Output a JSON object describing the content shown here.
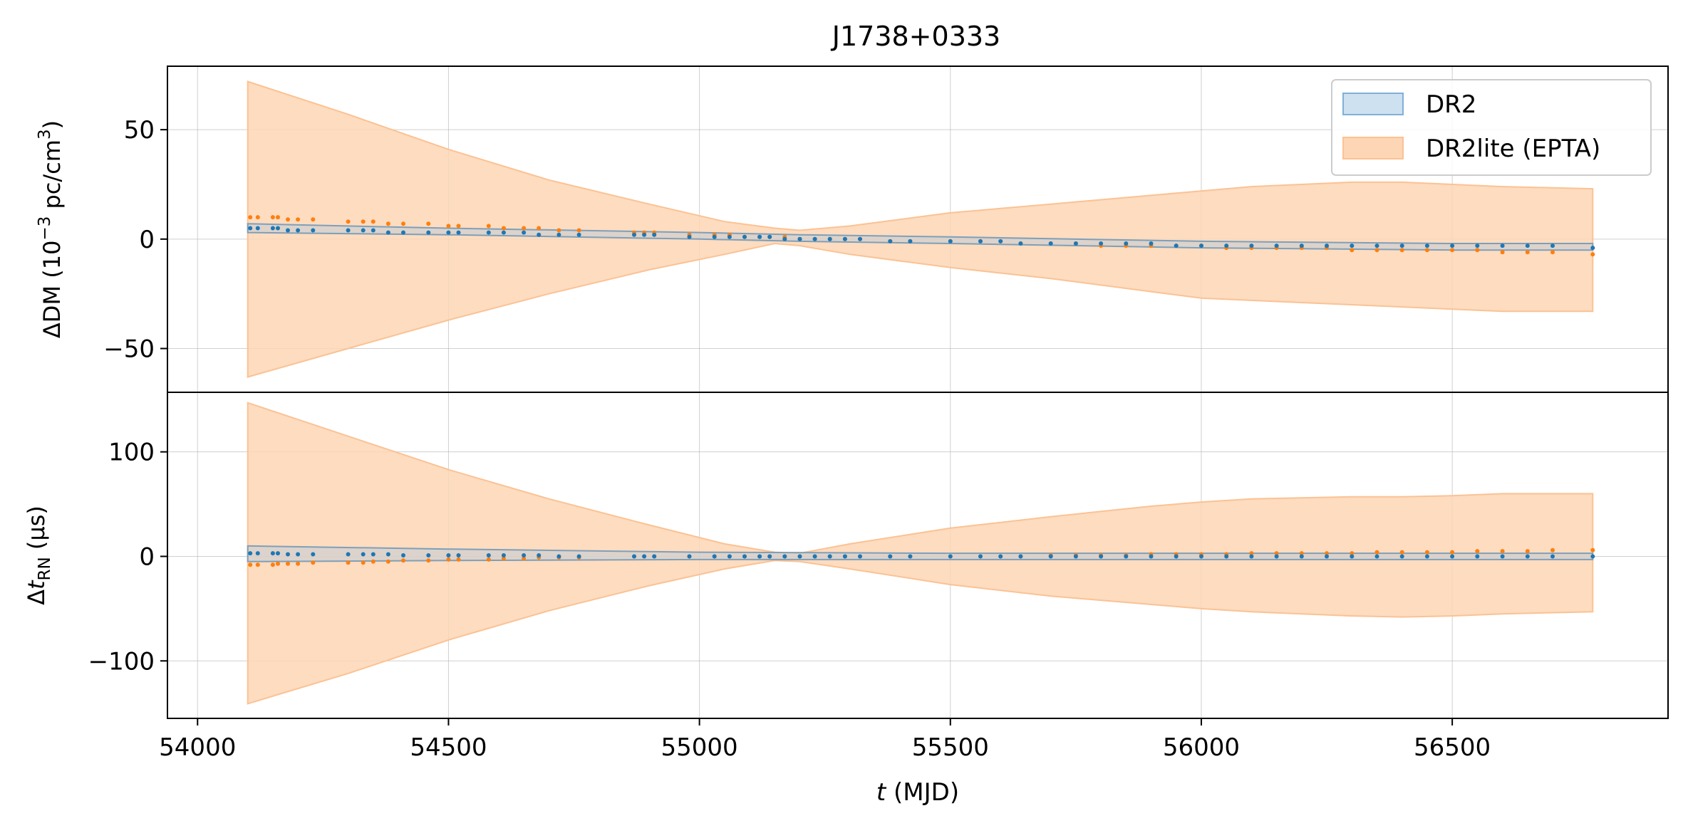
{
  "chart_data": {
    "type": "area",
    "title": "J1738+0333",
    "xlabel": "t (MJD)",
    "xlim": [
      53940,
      56930
    ],
    "xticks": [
      54000,
      54500,
      55000,
      55500,
      56000,
      56500
    ],
    "grid": true,
    "legend": {
      "placement": "top-right",
      "entries": [
        {
          "name": "DR2",
          "color": "#1f77b4"
        },
        {
          "name": "DR2lite (EPTA)",
          "color": "#ff7f0e"
        }
      ]
    },
    "colors": {
      "dr2": "#1f77b4",
      "dr2lite": "#ff7f0e",
      "band_dr2": "#9ec4e3",
      "band_dr2lite": "#fdd6b5"
    },
    "panels": [
      {
        "id": "dm",
        "ylabel": "ΔDM (10⁻³ pc/cm³)",
        "ylim": [
          -70,
          79
        ],
        "yticks": [
          -50,
          0,
          50
        ],
        "ytick_labels": [
          "−50",
          "0",
          "50"
        ],
        "bands": [
          {
            "series": "DR2lite (EPTA)",
            "x": [
              54100,
              54300,
              54500,
              54700,
              54900,
              55050,
              55150,
              55200,
              55300,
              55500,
              55700,
              55900,
              56000,
              56100,
              56200,
              56300,
              56400,
              56500,
              56600,
              56780
            ],
            "upper": [
              72,
              57,
              41,
              27,
              16,
              8,
              5,
              4,
              6,
              12,
              16,
              20,
              22,
              24,
              25,
              26,
              26,
              25,
              24,
              23
            ],
            "lower": [
              -63,
              -50,
              -37,
              -25,
              -14,
              -7,
              -2,
              -3,
              -7,
              -13,
              -18,
              -24,
              -27,
              -28,
              -29,
              -30,
              -31,
              -32,
              -33,
              -33
            ]
          },
          {
            "series": "DR2",
            "x": [
              54100,
              54500,
              55000,
              55200,
              55500,
              56000,
              56500,
              56780
            ],
            "upper": [
              7,
              5,
              3,
              2,
              1,
              -1,
              -2,
              -2
            ],
            "lower": [
              3,
              2,
              0,
              -1,
              -2,
              -4,
              -5,
              -5
            ]
          }
        ],
        "series": [
          {
            "name": "DR2lite (EPTA)",
            "x": [
              54105,
              54120,
              54150,
              54160,
              54180,
              54200,
              54230,
              54300,
              54330,
              54350,
              54380,
              54410,
              54460,
              54500,
              54520,
              54580,
              54610,
              54650,
              54680,
              54720,
              54760,
              54870,
              54890,
              54910,
              54980,
              55030,
              55060,
              55090,
              55120,
              55140,
              55170,
              55200,
              55230,
              55260,
              55290,
              55320,
              55380,
              55420,
              55500,
              55560,
              55600,
              55640,
              55700,
              55750,
              55800,
              55850,
              55900,
              55950,
              56000,
              56050,
              56100,
              56150,
              56200,
              56250,
              56300,
              56350,
              56400,
              56450,
              56500,
              56550,
              56600,
              56650,
              56700,
              56780
            ],
            "y": [
              10,
              10,
              10,
              10,
              9,
              9,
              9,
              8,
              8,
              8,
              7,
              7,
              7,
              6,
              6,
              6,
              5,
              5,
              5,
              4,
              4,
              3,
              3,
              3,
              2,
              2,
              2,
              1,
              1,
              1,
              1,
              0,
              0,
              0,
              0,
              0,
              -1,
              -1,
              -1,
              -1,
              -1,
              -2,
              -2,
              -2,
              -3,
              -3,
              -3,
              -3,
              -3,
              -4,
              -4,
              -4,
              -4,
              -4,
              -5,
              -5,
              -5,
              -5,
              -5,
              -5,
              -6,
              -6,
              -6,
              -7
            ]
          },
          {
            "name": "DR2",
            "x": [
              54105,
              54120,
              54150,
              54160,
              54180,
              54200,
              54230,
              54300,
              54330,
              54350,
              54380,
              54410,
              54460,
              54500,
              54520,
              54580,
              54610,
              54650,
              54680,
              54720,
              54760,
              54870,
              54890,
              54910,
              54980,
              55030,
              55060,
              55090,
              55120,
              55140,
              55170,
              55200,
              55230,
              55260,
              55290,
              55320,
              55380,
              55420,
              55500,
              55560,
              55600,
              55640,
              55700,
              55750,
              55800,
              55850,
              55900,
              55950,
              56000,
              56050,
              56100,
              56150,
              56200,
              56250,
              56300,
              56350,
              56400,
              56450,
              56500,
              56550,
              56600,
              56650,
              56700,
              56780
            ],
            "y": [
              5,
              5,
              5,
              5,
              4,
              4,
              4,
              4,
              4,
              4,
              3,
              3,
              3,
              3,
              3,
              3,
              3,
              3,
              2,
              2,
              2,
              2,
              2,
              2,
              1,
              1,
              1,
              1,
              1,
              1,
              0,
              0,
              0,
              0,
              0,
              0,
              -1,
              -1,
              -1,
              -1,
              -1,
              -2,
              -2,
              -2,
              -2,
              -2,
              -2,
              -3,
              -3,
              -3,
              -3,
              -3,
              -3,
              -3,
              -3,
              -3,
              -3,
              -3,
              -3,
              -3,
              -3,
              -3,
              -3,
              -4
            ]
          }
        ]
      },
      {
        "id": "rn",
        "ylabel": "Δt_RN (μs)",
        "ylabel_main": "Δ",
        "ylabel_italic": "t",
        "ylabel_sub": "RN",
        "ylabel_rest": " (μs)",
        "ylim": [
          -155,
          157
        ],
        "yticks": [
          -100,
          0,
          100
        ],
        "ytick_labels": [
          "−100",
          "0",
          "100"
        ],
        "bands": [
          {
            "series": "DR2lite (EPTA)",
            "x": [
              54100,
              54300,
              54500,
              54700,
              54900,
              55050,
              55150,
              55200,
              55300,
              55500,
              55700,
              55900,
              56000,
              56100,
              56200,
              56300,
              56400,
              56500,
              56600,
              56780
            ],
            "upper": [
              147,
              115,
              83,
              55,
              30,
              12,
              4,
              3,
              12,
              27,
              38,
              48,
              52,
              55,
              56,
              57,
              57,
              58,
              60,
              60
            ],
            "lower": [
              -141,
              -112,
              -80,
              -52,
              -28,
              -12,
              -4,
              -5,
              -12,
              -27,
              -38,
              -46,
              -50,
              -53,
              -55,
              -57,
              -58,
              -57,
              -55,
              -53
            ]
          },
          {
            "series": "DR2",
            "x": [
              54100,
              54500,
              55000,
              55500,
              56000,
              56500,
              56780
            ],
            "upper": [
              10,
              7,
              4,
              3,
              3,
              3,
              3
            ],
            "lower": [
              -5,
              -4,
              -3,
              -3,
              -3,
              -3,
              -3
            ]
          }
        ],
        "series": [
          {
            "name": "DR2lite (EPTA)",
            "x": [
              54105,
              54120,
              54150,
              54160,
              54180,
              54200,
              54230,
              54300,
              54330,
              54350,
              54380,
              54410,
              54460,
              54500,
              54520,
              54580,
              54610,
              54650,
              54680,
              54720,
              54760,
              54870,
              54890,
              54910,
              54980,
              55030,
              55060,
              55090,
              55120,
              55140,
              55170,
              55200,
              55230,
              55260,
              55290,
              55320,
              55380,
              55420,
              55500,
              55560,
              55600,
              55640,
              55700,
              55750,
              55800,
              55850,
              55900,
              55950,
              56000,
              56050,
              56100,
              56150,
              56200,
              56250,
              56300,
              56350,
              56400,
              56450,
              56500,
              56550,
              56600,
              56650,
              56700,
              56780
            ],
            "y": [
              -8,
              -8,
              -8,
              -7,
              -7,
              -7,
              -6,
              -6,
              -6,
              -5,
              -5,
              -4,
              -4,
              -3,
              -3,
              -3,
              -2,
              -2,
              -1,
              -1,
              -1,
              0,
              0,
              0,
              0,
              0,
              0,
              0,
              0,
              0,
              0,
              0,
              0,
              0,
              0,
              0,
              0,
              0,
              0,
              0,
              0,
              0,
              1,
              1,
              1,
              1,
              2,
              2,
              2,
              2,
              3,
              3,
              3,
              3,
              3,
              4,
              4,
              4,
              4,
              5,
              5,
              5,
              6,
              6
            ]
          },
          {
            "name": "DR2",
            "x": [
              54105,
              54120,
              54150,
              54160,
              54180,
              54200,
              54230,
              54300,
              54330,
              54350,
              54380,
              54410,
              54460,
              54500,
              54520,
              54580,
              54610,
              54650,
              54680,
              54720,
              54760,
              54870,
              54890,
              54910,
              54980,
              55030,
              55060,
              55090,
              55120,
              55140,
              55170,
              55200,
              55230,
              55260,
              55290,
              55320,
              55380,
              55420,
              55500,
              55560,
              55600,
              55640,
              55700,
              55750,
              55800,
              55850,
              55900,
              55950,
              56000,
              56050,
              56100,
              56150,
              56200,
              56250,
              56300,
              56350,
              56400,
              56450,
              56500,
              56550,
              56600,
              56650,
              56700,
              56780
            ],
            "y": [
              3,
              3,
              3,
              3,
              2,
              2,
              2,
              2,
              2,
              2,
              2,
              1,
              1,
              1,
              1,
              1,
              1,
              1,
              1,
              0,
              0,
              0,
              0,
              0,
              0,
              0,
              0,
              0,
              0,
              0,
              0,
              0,
              0,
              0,
              0,
              0,
              0,
              0,
              0,
              0,
              0,
              0,
              0,
              0,
              0,
              0,
              0,
              0,
              0,
              0,
              0,
              0,
              0,
              0,
              0,
              0,
              0,
              0,
              0,
              0,
              0,
              0,
              0,
              0
            ]
          }
        ]
      }
    ]
  }
}
